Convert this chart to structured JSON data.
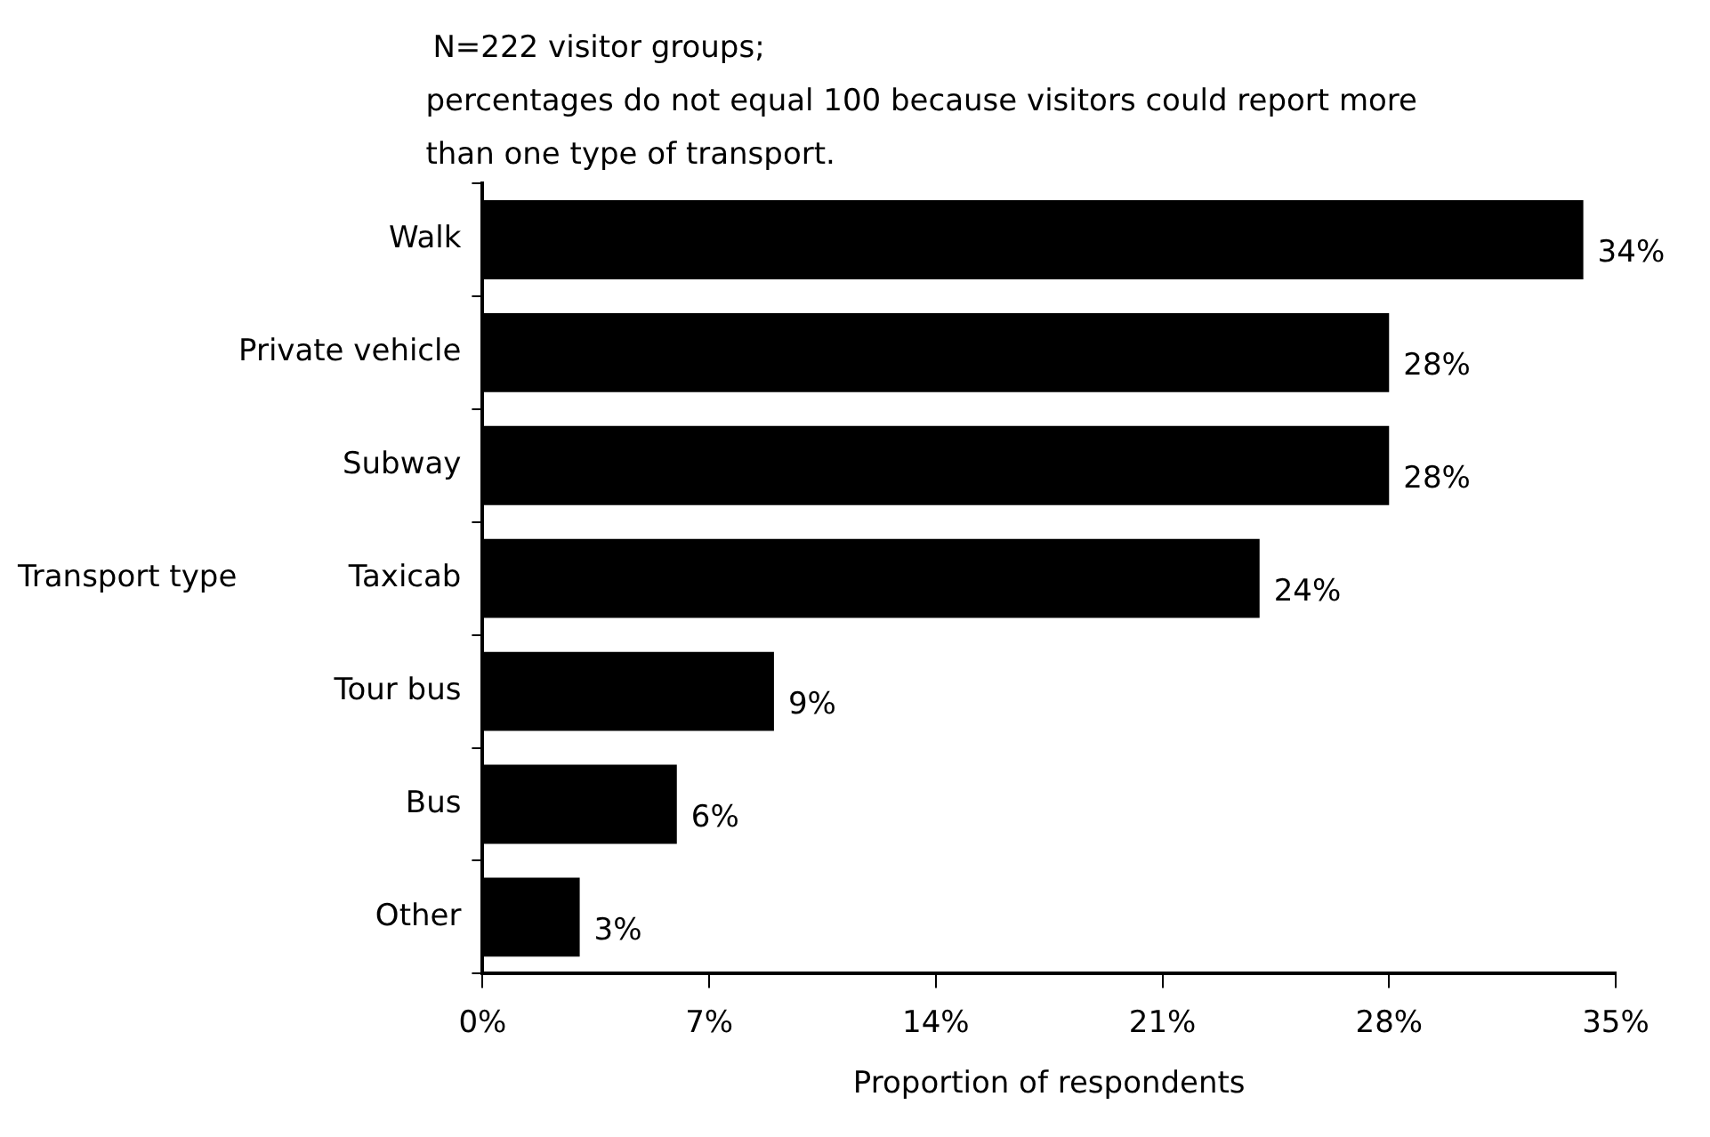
{
  "chart_data": {
    "type": "bar",
    "orientation": "horizontal",
    "annotations": [
      "N=222 visitor groups;",
      "percentages do not equal 100 because visitors could report more than one type of transport."
    ],
    "categories": [
      "Walk",
      "Private vehicle",
      "Subway",
      "Taxicab",
      "Tour bus",
      "Bus",
      "Other"
    ],
    "values": [
      34,
      28,
      28,
      24,
      9,
      6,
      3
    ],
    "value_labels": [
      "34%",
      "28%",
      "28%",
      "24%",
      "9%",
      "6%",
      "3%"
    ],
    "color": "#000000",
    "xlabel": "Proportion of respondents",
    "ylabel": "Transport type",
    "xlim": [
      0,
      35
    ],
    "xticks": [
      {
        "value": 0,
        "label": "0%"
      },
      {
        "value": 7,
        "label": "7%"
      },
      {
        "value": 14,
        "label": "14%"
      },
      {
        "value": 21,
        "label": "21%"
      },
      {
        "value": 28,
        "label": "28%"
      },
      {
        "value": 35,
        "label": "35%"
      }
    ],
    "grid": false,
    "legend": false
  }
}
